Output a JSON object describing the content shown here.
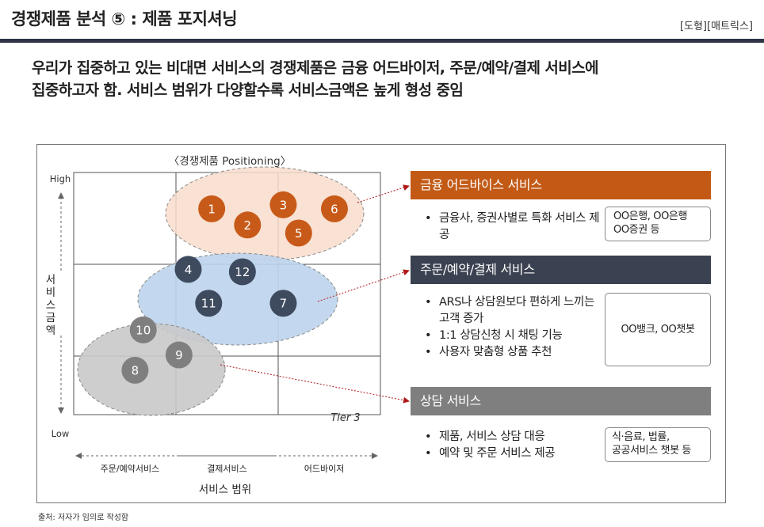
{
  "header": {
    "title": "경쟁제품 분석 ⑤ : 제품 포지셔닝",
    "tag": "[도형][매트릭스]"
  },
  "headline": {
    "line1": "우리가 집중하고 있는 비대면 서비스의 경쟁제품은 금융 어드바이저, 주문/예약/결제 서비스에",
    "line2": "집중하고자 함. 서비스 범위가 다양할수록 서비스금액은 높게 형성 중임"
  },
  "matrix": {
    "title": "〈경쟁제품 Positioning〉",
    "y_label": "서비스금액",
    "y_high": "High",
    "y_low": "Low",
    "x_label": "서비스 범위",
    "x_ticks": [
      "주문/예약서비스",
      "결제서비스",
      "어드바이저"
    ],
    "tier_label": "Tier 3",
    "groups": [
      {
        "name": "금융 어드바이스 서비스",
        "fill": "#f8dccb",
        "dot": "#c85a19",
        "items": [
          {
            "label": "1",
            "x": 1.35,
            "y": 2.55
          },
          {
            "label": "2",
            "x": 1.7,
            "y": 2.35
          },
          {
            "label": "3",
            "x": 2.05,
            "y": 2.6
          },
          {
            "label": "5",
            "x": 2.2,
            "y": 2.25
          },
          {
            "label": "6",
            "x": 2.55,
            "y": 2.55
          }
        ]
      },
      {
        "name": "주문/예약/결제 서비스",
        "fill": "#bcd4ec",
        "dot": "#3e4a5e",
        "items": [
          {
            "label": "4",
            "x": 1.12,
            "y": 1.8
          },
          {
            "label": "12",
            "x": 1.65,
            "y": 1.77
          },
          {
            "label": "11",
            "x": 1.32,
            "y": 1.38
          },
          {
            "label": "7",
            "x": 2.05,
            "y": 1.38
          }
        ]
      },
      {
        "name": "상담 서비스",
        "fill": "#c9c9c9",
        "dot": "#7f7f7f",
        "items": [
          {
            "label": "10",
            "x": 0.68,
            "y": 1.05
          },
          {
            "label": "9",
            "x": 1.03,
            "y": 0.74
          },
          {
            "label": "8",
            "x": 0.6,
            "y": 0.55
          }
        ]
      }
    ]
  },
  "panels": [
    {
      "title": "금융 어드바이스 서비스",
      "color": "#c25a16",
      "bullets": [
        "금융사, 증권사별로 특화 서비스 제공"
      ],
      "examples": [
        "OO은행, OO은행",
        "OO증권 등"
      ]
    },
    {
      "title": "주문/예약/결제  서비스",
      "color": "#3a4150",
      "bullets": [
        "ARS나 상담원보다 편하게 느끼는 고객 증가",
        "1:1 상담신청 시 채팅 기능",
        "사용자 맞춤형 상품 추천"
      ],
      "examples": [
        "OO뱅크, OO챗봇"
      ]
    },
    {
      "title": "상담 서비스",
      "color": "#7f7f7f",
      "bullets": [
        "제품, 서비스 상담 대응",
        "예약 및 주문 서비스 제공"
      ],
      "examples": [
        "식·음료, 법률,",
        "공공서비스 챗봇 등"
      ]
    }
  ],
  "footer": {
    "source": "출처: 저자가 임의로 작성함"
  }
}
